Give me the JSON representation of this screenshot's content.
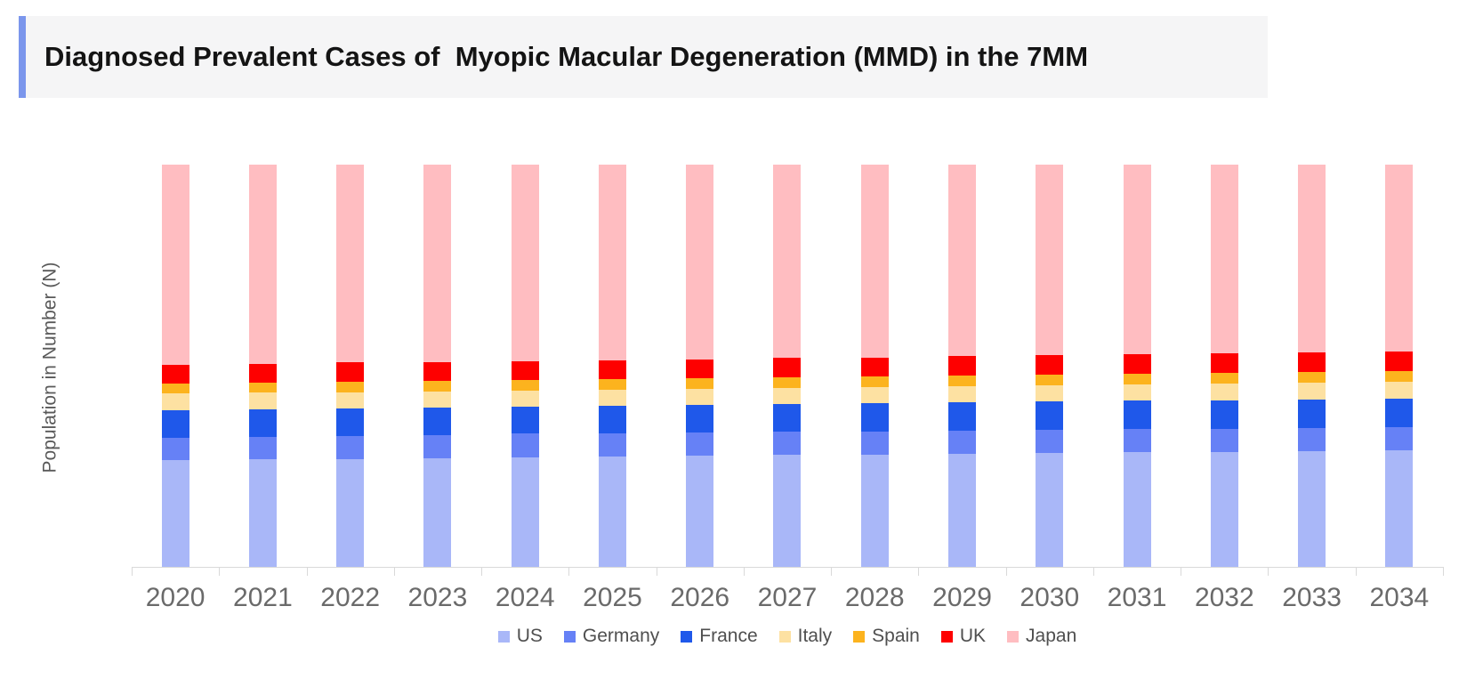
{
  "header": {
    "title": "Diagnosed Prevalent Cases of  Myopic Macular Degeneration (MMD) in the 7MM",
    "accent_color": "#7b96ec",
    "strip_background": "#f5f5f6"
  },
  "chart_data": {
    "type": "bar",
    "stacked": true,
    "title": "Diagnosed Prevalent Cases of  Myopic Macular Degeneration (MMD) in the 7MM",
    "xlabel": "",
    "ylabel": "Population in Number (N)",
    "grid": false,
    "legend_position": "bottom",
    "y_axis_numeric_labels": false,
    "value_scale": "relative stacked height (no numeric y ticks shown), each year totals 452",
    "categories": [
      "2020",
      "2021",
      "2022",
      "2023",
      "2024",
      "2025",
      "2026",
      "2027",
      "2028",
      "2029",
      "2030",
      "2031",
      "2032",
      "2033",
      "2034"
    ],
    "series": [
      {
        "name": "US",
        "color": "#a9b7f8",
        "values": [
          120,
          121,
          121,
          122,
          123,
          124,
          125,
          126,
          126,
          127,
          128,
          129,
          129,
          130,
          131
        ]
      },
      {
        "name": "Germany",
        "color": "#6681f6",
        "values": [
          25,
          25,
          26,
          26,
          27,
          26,
          26,
          26,
          26,
          26,
          26,
          26,
          26,
          26,
          26
        ]
      },
      {
        "name": "France",
        "color": "#1f58ea",
        "values": [
          31,
          31,
          31,
          31,
          30,
          31,
          31,
          31,
          32,
          32,
          32,
          32,
          32,
          32,
          32
        ]
      },
      {
        "name": "Italy",
        "color": "#fde1a2",
        "values": [
          19,
          19,
          18,
          18,
          18,
          18,
          18,
          18,
          18,
          18,
          18,
          18,
          19,
          19,
          19
        ]
      },
      {
        "name": "Spain",
        "color": "#fcb31e",
        "values": [
          11,
          11,
          12,
          12,
          12,
          12,
          12,
          12,
          12,
          12,
          12,
          12,
          12,
          12,
          12
        ]
      },
      {
        "name": "UK",
        "color": "#fe0000",
        "values": [
          21,
          21,
          22,
          21,
          21,
          21,
          21,
          22,
          21,
          22,
          22,
          22,
          22,
          22,
          22
        ]
      },
      {
        "name": "Japan",
        "color": "#ffbdc1",
        "values": [
          225,
          224,
          222,
          222,
          221,
          220,
          219,
          217,
          217,
          215,
          214,
          213,
          212,
          211,
          210
        ]
      }
    ],
    "axis_color": "#d9d9d9",
    "tick_label_color": "#6a6a6a"
  }
}
